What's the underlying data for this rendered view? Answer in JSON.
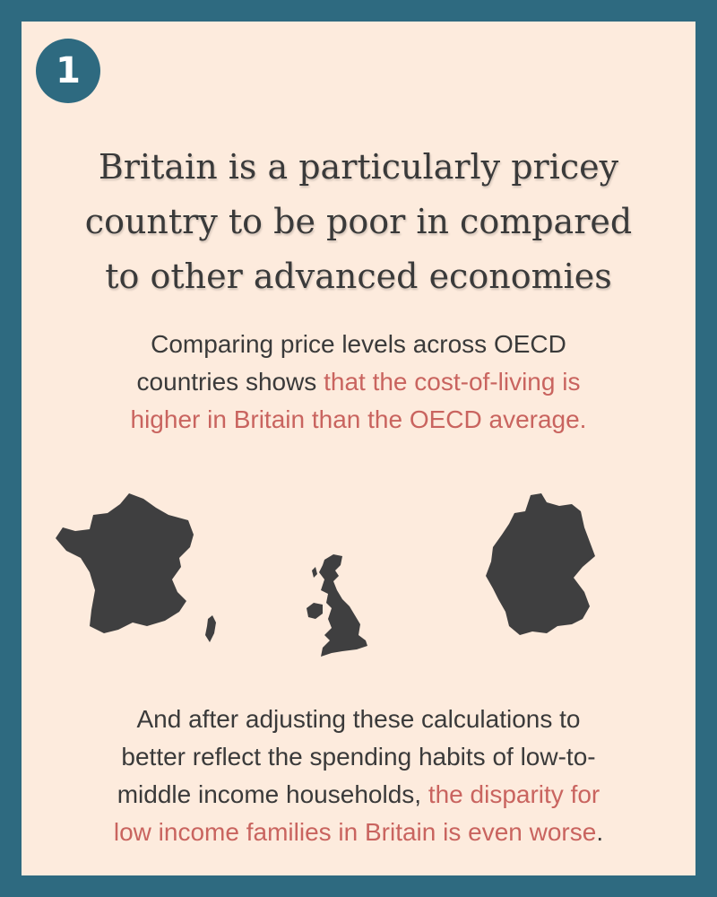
{
  "badge": {
    "number": "1"
  },
  "headline": {
    "line1": "Britain is a particularly pricey",
    "line2": "country to be poor in compared",
    "line3": "to other advanced economies"
  },
  "intro": {
    "line1": "Comparing  price levels across OECD",
    "line2_plain": "countries shows ",
    "line2_highlight": "that the cost-of-living is",
    "line3_highlight": "higher in Britain than the OECD average."
  },
  "maps": {
    "icons": [
      "france-map-icon",
      "uk-map-icon",
      "germany-map-icon"
    ],
    "fill_color": "#3f3f40"
  },
  "conclusion": {
    "line1": "And after adjusting these calculations to",
    "line2": "better reflect the spending habits of low-to-",
    "line3_plain": "middle income households, ",
    "line3_highlight": "the disparity for",
    "line4_highlight": "low income families in Britain is even worse",
    "line4_end": "."
  },
  "colors": {
    "frame": "#2e6a80",
    "background": "#fdebdd",
    "text": "#3a3a3a",
    "highlight": "#c9645f"
  }
}
